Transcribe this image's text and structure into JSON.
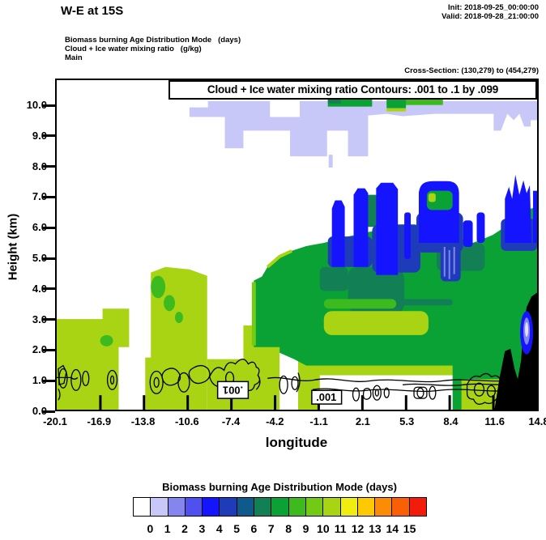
{
  "header": {
    "title": "W-E at 15S",
    "init_line": "Init: 2018-09-25_00:00:00",
    "valid_line": "Valid: 2018-09-28_21:00:00",
    "subtitle_line1": "Biomass burning Age Distribution Mode   (days)",
    "subtitle_line2": "Cloud + Ice water mixing ratio   (g/kg)",
    "subtitle_line3": "Main",
    "cross_section": "Cross-Section: (130,279) to (454,279)"
  },
  "plot": {
    "box_title": "Cloud + Ice water mixing ratio Contours: .001 to .1 by .099",
    "contour_label": ".001",
    "y_axis": {
      "title": "Height (km)",
      "ticks": [
        "10.0",
        "9.0",
        "8.0",
        "7.0",
        "6.0",
        "5.0",
        "4.0",
        "3.0",
        "2.0",
        "1.0",
        "0.0"
      ]
    },
    "x_axis": {
      "title": "longitude",
      "ticks": [
        "-20.1",
        "-16.9",
        "-13.8",
        "-10.6",
        "-7.4",
        "-4.2",
        "-1.1",
        "2.1",
        "5.3",
        "8.4",
        "11.6",
        "14.8"
      ]
    }
  },
  "colorbar": {
    "title": "Biomass burning Age Distribution Mode  (days)",
    "values": [
      "0",
      "1",
      "2",
      "3",
      "4",
      "5",
      "6",
      "7",
      "8",
      "9",
      "10",
      "11",
      "12",
      "13",
      "14",
      "15"
    ]
  },
  "colors": {
    "palette": [
      "#ffffff",
      "#c8c8f8",
      "#8585ee",
      "#5050f0",
      "#1414ff",
      "#1e3cb9",
      "#0f5a8c",
      "#128054",
      "#0aa234",
      "#3cba1e",
      "#73ca14",
      "#a8d414",
      "#f0ee0e",
      "#fdc900",
      "#fc8b05",
      "#f96006",
      "#f31b0a"
    ],
    "terrain": "#000000"
  },
  "chart_data": {
    "type": "heatmap",
    "subtype": "filled-contour vertical cross-section",
    "title": "W-E at 15S",
    "shaded_field": {
      "name": "Biomass burning Age Distribution Mode",
      "units": "days",
      "level_boundaries": [
        0,
        1,
        2,
        3,
        4,
        5,
        6,
        7,
        8,
        9,
        10,
        11,
        12,
        13,
        14,
        15
      ],
      "n_color_cells": 17,
      "legend_position": "bottom"
    },
    "contoured_field": {
      "name": "Cloud + Ice water mixing ratio",
      "units": "g/kg",
      "contour_min": 0.001,
      "contour_max": 0.1,
      "contour_interval": 0.099,
      "labeled_level": 0.001
    },
    "xlabel": "longitude",
    "ylabel": "Height (km)",
    "x_ticks": [
      -20.1,
      -16.9,
      -13.8,
      -10.6,
      -7.4,
      -4.2,
      -1.1,
      2.1,
      5.3,
      8.4,
      11.6,
      14.8
    ],
    "y_ticks": [
      0,
      1,
      2,
      3,
      4,
      5,
      6,
      7,
      8,
      9,
      10
    ],
    "xlim": [
      -20.1,
      14.8
    ],
    "ylim": [
      0,
      10.4
    ],
    "grid": false,
    "notes": "Plume ages 10-11 days (yellow-green) fill 0-3 km on the west side; ages 7-9 days (greens) fill a deepening layer rising to ~7 km toward the east; ages 3-5 days (blues) cap the plume top between lon -1 and 15; ages 1-2 days (lavender) form a thin detached layer at 8.5-10 km; black terrain rises near the eastern edge; 0.001 g/kg cloud contours lie near 0.5-1.5 km."
  }
}
